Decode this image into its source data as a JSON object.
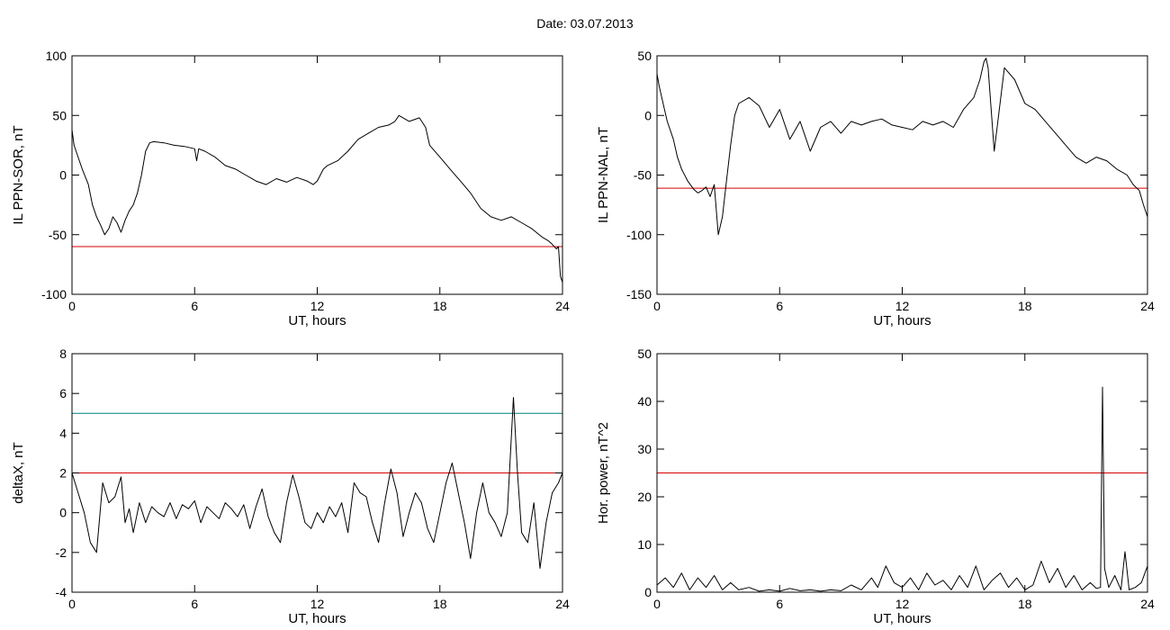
{
  "title": "Date:  03.07.2013",
  "chart_data": [
    {
      "type": "line",
      "panel": "top-left",
      "xlabel": "UT, hours",
      "ylabel": "IL PPN-SOR, nT",
      "xlim": [
        0,
        24
      ],
      "ylim": [
        -100,
        100
      ],
      "xticks": [
        0,
        6,
        12,
        18,
        24
      ],
      "yticks": [
        -100,
        -50,
        0,
        50,
        100
      ],
      "thresholds": [
        {
          "value": -60,
          "color": "#d40000"
        }
      ],
      "series": [
        {
          "color": "#000000",
          "x": [
            0,
            0.1,
            0.3,
            0.5,
            0.8,
            1.0,
            1.2,
            1.4,
            1.6,
            1.8,
            2.0,
            2.2,
            2.4,
            2.6,
            2.8,
            3.0,
            3.2,
            3.4,
            3.6,
            3.8,
            4.0,
            4.5,
            5.0,
            5.5,
            6.0,
            6.1,
            6.2,
            6.5,
            7.0,
            7.5,
            8.0,
            8.5,
            9.0,
            9.5,
            10.0,
            10.5,
            11.0,
            11.5,
            11.8,
            12.0,
            12.3,
            12.5,
            13.0,
            13.5,
            14.0,
            14.5,
            15.0,
            15.5,
            15.8,
            16.0,
            16.5,
            17.0,
            17.3,
            17.5,
            18.0,
            18.5,
            19.0,
            19.5,
            20.0,
            20.5,
            21.0,
            21.5,
            22.0,
            22.5,
            23.0,
            23.3,
            23.5,
            23.7,
            23.8,
            23.9,
            24.0
          ],
          "y": [
            38,
            25,
            15,
            5,
            -8,
            -25,
            -35,
            -42,
            -50,
            -45,
            -35,
            -40,
            -48,
            -38,
            -30,
            -25,
            -15,
            0,
            20,
            27,
            28,
            27,
            25,
            24,
            22,
            12,
            22,
            20,
            15,
            8,
            5,
            0,
            -5,
            -8,
            -3,
            -6,
            -2,
            -5,
            -8,
            -5,
            5,
            8,
            12,
            20,
            30,
            35,
            40,
            42,
            45,
            50,
            45,
            48,
            40,
            25,
            15,
            5,
            -5,
            -15,
            -28,
            -35,
            -38,
            -35,
            -40,
            -45,
            -52,
            -55,
            -58,
            -62,
            -60,
            -85,
            -90
          ]
        }
      ]
    },
    {
      "type": "line",
      "panel": "top-right",
      "xlabel": "UT, hours",
      "ylabel": "IL PPN-NAL, nT",
      "xlim": [
        0,
        24
      ],
      "ylim": [
        -150,
        50
      ],
      "xticks": [
        0,
        6,
        12,
        18,
        24
      ],
      "yticks": [
        -150,
        -100,
        -50,
        0,
        50
      ],
      "thresholds": [
        {
          "value": -61,
          "color": "#d40000"
        }
      ],
      "series": [
        {
          "color": "#000000",
          "x": [
            0,
            0.1,
            0.3,
            0.5,
            0.8,
            1.0,
            1.2,
            1.5,
            1.8,
            2.0,
            2.2,
            2.4,
            2.6,
            2.8,
            3.0,
            3.2,
            3.4,
            3.6,
            3.8,
            4.0,
            4.5,
            5.0,
            5.5,
            6.0,
            6.5,
            7.0,
            7.5,
            8.0,
            8.5,
            9.0,
            9.5,
            10.0,
            10.5,
            11.0,
            11.5,
            12.0,
            12.5,
            13.0,
            13.5,
            14.0,
            14.5,
            15.0,
            15.5,
            15.8,
            16.0,
            16.1,
            16.2,
            16.5,
            17.0,
            17.5,
            18.0,
            18.5,
            19.0,
            19.5,
            20.0,
            20.5,
            21.0,
            21.5,
            22.0,
            22.5,
            23.0,
            23.3,
            23.6,
            23.8,
            24.0
          ],
          "y": [
            35,
            25,
            10,
            -5,
            -20,
            -35,
            -45,
            -55,
            -62,
            -65,
            -63,
            -60,
            -68,
            -58,
            -100,
            -85,
            -55,
            -25,
            0,
            10,
            15,
            8,
            -10,
            5,
            -20,
            -5,
            -30,
            -10,
            -5,
            -15,
            -5,
            -8,
            -5,
            -3,
            -8,
            -10,
            -12,
            -5,
            -8,
            -5,
            -10,
            5,
            15,
            30,
            45,
            48,
            40,
            -30,
            40,
            30,
            10,
            5,
            -5,
            -15,
            -25,
            -35,
            -40,
            -35,
            -38,
            -45,
            -50,
            -58,
            -63,
            -75,
            -85
          ]
        }
      ]
    },
    {
      "type": "line",
      "panel": "bottom-left",
      "xlabel": "UT, hours",
      "ylabel": "deltaX, nT",
      "xlim": [
        0,
        24
      ],
      "ylim": [
        -4,
        8
      ],
      "xticks": [
        0,
        6,
        12,
        18,
        24
      ],
      "yticks": [
        -4,
        -2,
        0,
        2,
        4,
        6,
        8
      ],
      "thresholds": [
        {
          "value": 5,
          "color": "#008080"
        },
        {
          "value": 2,
          "color": "#d40000"
        }
      ],
      "series": [
        {
          "color": "#000000",
          "x": [
            0,
            0.3,
            0.6,
            0.9,
            1.2,
            1.5,
            1.8,
            2.1,
            2.4,
            2.6,
            2.8,
            3.0,
            3.3,
            3.6,
            3.9,
            4.2,
            4.5,
            4.8,
            5.1,
            5.4,
            5.7,
            6.0,
            6.3,
            6.6,
            6.9,
            7.2,
            7.5,
            7.8,
            8.1,
            8.4,
            8.7,
            9.0,
            9.3,
            9.6,
            9.9,
            10.2,
            10.5,
            10.8,
            11.1,
            11.4,
            11.7,
            12.0,
            12.3,
            12.6,
            12.9,
            13.2,
            13.5,
            13.8,
            14.1,
            14.4,
            14.7,
            15.0,
            15.3,
            15.6,
            15.9,
            16.2,
            16.5,
            16.8,
            17.1,
            17.4,
            17.7,
            18.0,
            18.3,
            18.6,
            18.9,
            19.2,
            19.5,
            19.8,
            20.1,
            20.4,
            20.7,
            21.0,
            21.3,
            21.6,
            21.8,
            22.0,
            22.3,
            22.6,
            22.9,
            23.2,
            23.5,
            23.8,
            24.0
          ],
          "y": [
            2.0,
            1.0,
            0.0,
            -1.5,
            -2.0,
            1.5,
            0.5,
            0.8,
            1.8,
            -0.5,
            0.2,
            -1.0,
            0.5,
            -0.5,
            0.3,
            0.0,
            -0.2,
            0.5,
            -0.3,
            0.4,
            0.2,
            0.6,
            -0.5,
            0.3,
            0.0,
            -0.3,
            0.5,
            0.2,
            -0.2,
            0.4,
            -0.8,
            0.3,
            1.2,
            -0.2,
            -1.0,
            -1.5,
            0.5,
            1.9,
            0.8,
            -0.5,
            -0.8,
            0.0,
            -0.5,
            0.3,
            -0.2,
            0.5,
            -1.0,
            1.5,
            1.0,
            0.8,
            -0.5,
            -1.5,
            0.5,
            2.2,
            1.0,
            -1.2,
            0.0,
            1.0,
            0.5,
            -0.8,
            -1.5,
            0.0,
            1.5,
            2.5,
            1.0,
            -0.5,
            -2.3,
            0.0,
            1.5,
            0.0,
            -0.5,
            -1.2,
            0.0,
            5.8,
            2.0,
            -1.0,
            -1.5,
            0.5,
            -2.8,
            -0.5,
            1.0,
            1.5,
            2.0
          ]
        }
      ]
    },
    {
      "type": "line",
      "panel": "bottom-right",
      "xlabel": "UT, hours",
      "ylabel": "Hor. power, nT^2",
      "xlim": [
        0,
        24
      ],
      "ylim": [
        0,
        50
      ],
      "xticks": [
        0,
        6,
        12,
        18,
        24
      ],
      "yticks": [
        0,
        10,
        20,
        30,
        40,
        50
      ],
      "thresholds": [
        {
          "value": 25,
          "color": "#d40000"
        }
      ],
      "series": [
        {
          "color": "#000000",
          "x": [
            0,
            0.4,
            0.8,
            1.2,
            1.6,
            2.0,
            2.4,
            2.8,
            3.2,
            3.6,
            4.0,
            4.5,
            5.0,
            5.5,
            6.0,
            6.5,
            7.0,
            7.5,
            8.0,
            8.5,
            9.0,
            9.5,
            10.0,
            10.5,
            10.8,
            11.2,
            11.6,
            12.0,
            12.4,
            12.8,
            13.2,
            13.6,
            14.0,
            14.4,
            14.8,
            15.2,
            15.6,
            16.0,
            16.4,
            16.8,
            17.2,
            17.6,
            18.0,
            18.4,
            18.8,
            19.2,
            19.6,
            20.0,
            20.4,
            20.8,
            21.2,
            21.5,
            21.7,
            21.8,
            21.9,
            22.1,
            22.4,
            22.7,
            22.9,
            23.1,
            23.4,
            23.7,
            24.0
          ],
          "y": [
            1.5,
            3.0,
            1.0,
            4.0,
            0.5,
            3.0,
            1.0,
            3.5,
            0.5,
            2.0,
            0.5,
            1.0,
            0.2,
            0.5,
            0.2,
            0.8,
            0.3,
            0.5,
            0.2,
            0.5,
            0.3,
            1.5,
            0.5,
            3.0,
            1.0,
            5.5,
            2.0,
            1.0,
            3.0,
            0.5,
            4.0,
            1.5,
            2.5,
            0.5,
            3.5,
            1.0,
            5.5,
            0.5,
            2.5,
            4.0,
            1.0,
            3.0,
            0.5,
            1.5,
            6.5,
            2.0,
            5.0,
            1.0,
            3.5,
            0.5,
            2.0,
            0.8,
            1.0,
            43,
            5.0,
            1.0,
            3.5,
            0.5,
            8.5,
            0.5,
            1.0,
            2.0,
            5.5
          ]
        }
      ]
    }
  ]
}
